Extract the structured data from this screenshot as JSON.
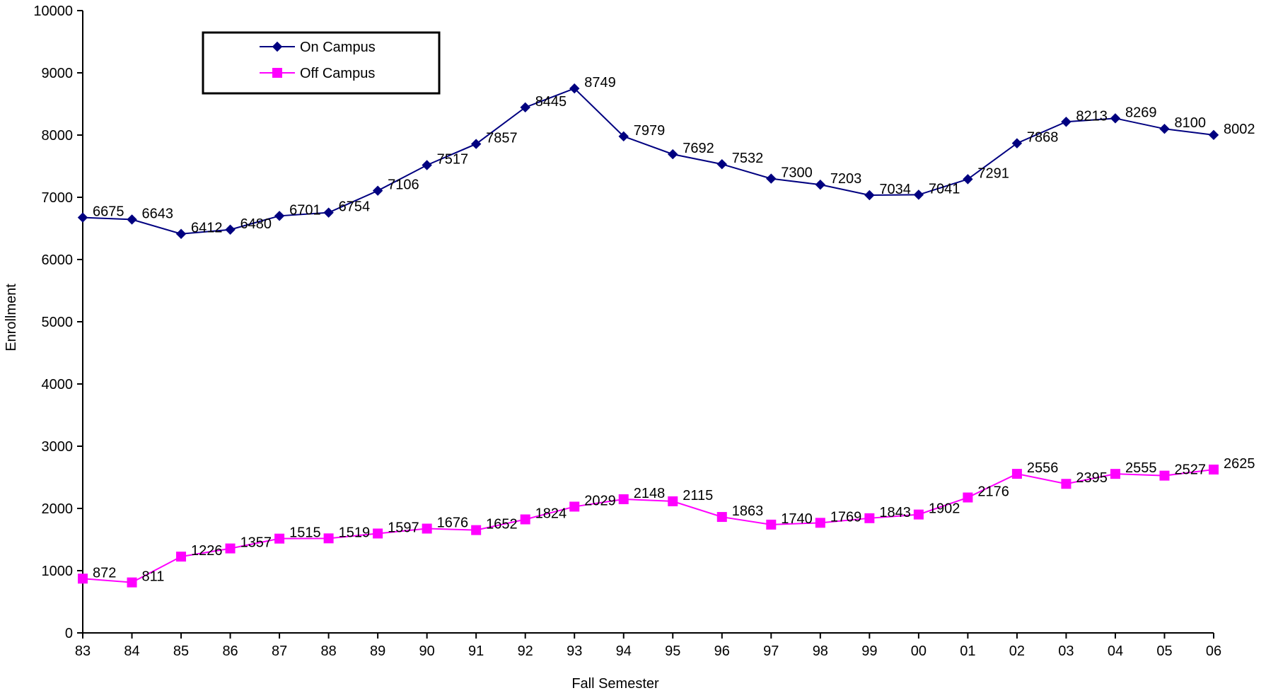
{
  "chart_data": {
    "type": "line",
    "categories": [
      "83",
      "84",
      "85",
      "86",
      "87",
      "88",
      "89",
      "90",
      "91",
      "92",
      "93",
      "94",
      "95",
      "96",
      "97",
      "98",
      "99",
      "00",
      "01",
      "02",
      "03",
      "04",
      "05",
      "06"
    ],
    "series": [
      {
        "name": "On Campus",
        "color": "#000080",
        "marker": "diamond",
        "values": [
          6675,
          6643,
          6412,
          6480,
          6701,
          6754,
          7106,
          7517,
          7857,
          8445,
          8749,
          7979,
          7692,
          7532,
          7300,
          7203,
          7034,
          7041,
          7291,
          7868,
          8213,
          8269,
          8100,
          8002
        ]
      },
      {
        "name": "Off Campus",
        "color": "#FF00FF",
        "marker": "square",
        "values": [
          872,
          811,
          1226,
          1357,
          1515,
          1519,
          1597,
          1676,
          1652,
          1824,
          2029,
          2148,
          2115,
          1863,
          1740,
          1769,
          1843,
          1902,
          2176,
          2556,
          2395,
          2555,
          2527,
          2625
        ]
      }
    ],
    "xlabel": "Fall Semester",
    "ylabel": "Enrollment",
    "ylim": [
      0,
      10000
    ],
    "yticks": [
      0,
      1000,
      2000,
      3000,
      4000,
      5000,
      6000,
      7000,
      8000,
      9000,
      10000
    ],
    "grid": false,
    "legend_position": "top-left"
  }
}
